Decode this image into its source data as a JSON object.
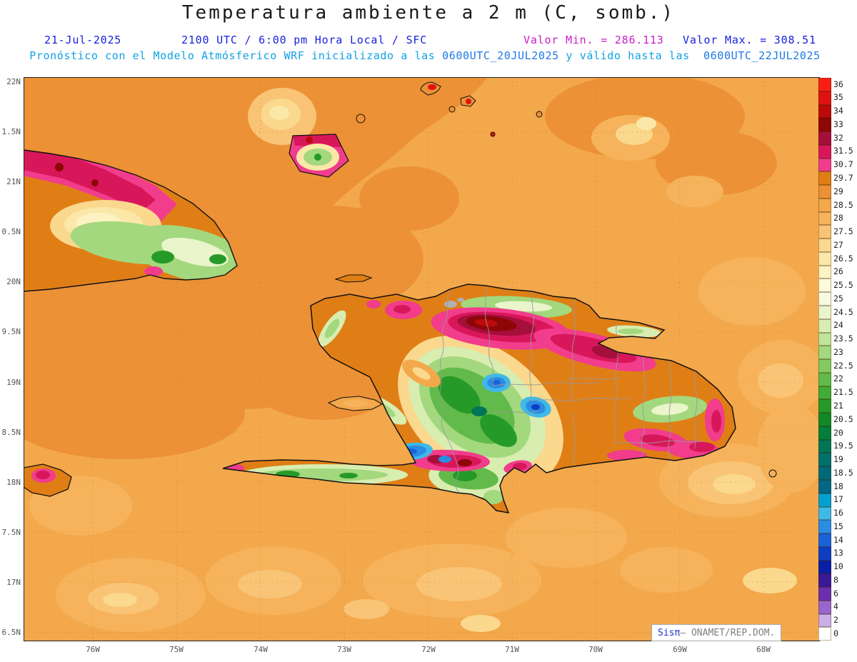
{
  "header": {
    "title": "Temperatura ambiente a 2 m (C, somb.)",
    "date": "21-Jul-2025",
    "time_line": "2100 UTC / 6:00 pm Hora Local / SFC",
    "valor_min": "Valor Min. = 286.113",
    "valor_max": "Valor Max. = 308.51",
    "forecast_prefix": "Pronóstico con el Modelo Atmósferico WRF inicializado a las ",
    "forecast_init": "0600UTC_20JUL2025",
    "forecast_mid": " y válido hasta las  ",
    "forecast_valid": "0600UTC_22JUL2025"
  },
  "map": {
    "lat_labels": [
      "22N",
      "1.5N",
      "21N",
      "0.5N",
      "20N",
      "9.5N",
      "19N",
      "8.5N",
      "18N",
      "7.5N",
      "17N",
      "6.5N"
    ],
    "lon_labels": [
      "76W",
      "75W",
      "74W",
      "73W",
      "72W",
      "71W",
      "70W",
      "69W",
      "68W"
    ],
    "colors": {
      "sea_28_5": "#F3A84C",
      "sea_29": "#EC9136",
      "land_29_7": "#E07E16",
      "hot_magenta_30_7": "#F23C8C",
      "hot_crimson_31_5": "#D8175A",
      "hot_dark_32": "#A50F3C",
      "hot_maroon_33": "#8E0606",
      "cool_green_22": "#62BA4A",
      "lake_blue_15": "#2B8CE4"
    }
  },
  "legend": {
    "entries": [
      {
        "value": "36",
        "color": "#F81E14"
      },
      {
        "value": "35",
        "color": "#E01210"
      },
      {
        "value": "34",
        "color": "#BC0A0A"
      },
      {
        "value": "33",
        "color": "#8E0606"
      },
      {
        "value": "32",
        "color": "#A50F3C"
      },
      {
        "value": "31.5",
        "color": "#D8175A"
      },
      {
        "value": "30.7",
        "color": "#F23C8C"
      },
      {
        "value": "29.7",
        "color": "#E07E16"
      },
      {
        "value": "29",
        "color": "#EC9136"
      },
      {
        "value": "28.5",
        "color": "#F3A84C"
      },
      {
        "value": "28",
        "color": "#F6B35B"
      },
      {
        "value": "27.5",
        "color": "#F9C476"
      },
      {
        "value": "27",
        "color": "#FAD88E"
      },
      {
        "value": "26.5",
        "color": "#FBE8A8"
      },
      {
        "value": "26",
        "color": "#FDF2C2"
      },
      {
        "value": "25.5",
        "color": "#FEFAD9"
      },
      {
        "value": "25",
        "color": "#F7FADF"
      },
      {
        "value": "24.5",
        "color": "#EAF5CB"
      },
      {
        "value": "24",
        "color": "#D8EDB0"
      },
      {
        "value": "23.5",
        "color": "#C0E49A"
      },
      {
        "value": "23",
        "color": "#A3D87E"
      },
      {
        "value": "22.5",
        "color": "#83C962"
      },
      {
        "value": "22",
        "color": "#62BA4A"
      },
      {
        "value": "21.5",
        "color": "#42AA36"
      },
      {
        "value": "21",
        "color": "#269A28"
      },
      {
        "value": "20.5",
        "color": "#108A28"
      },
      {
        "value": "20",
        "color": "#047E3C"
      },
      {
        "value": "19.5",
        "color": "#007656"
      },
      {
        "value": "19",
        "color": "#00706A"
      },
      {
        "value": "18.5",
        "color": "#006A78"
      },
      {
        "value": "18",
        "color": "#026886"
      },
      {
        "value": "17",
        "color": "#05A0D0"
      },
      {
        "value": "16",
        "color": "#3FB9E8"
      },
      {
        "value": "15",
        "color": "#2B8CE4"
      },
      {
        "value": "14",
        "color": "#1A62D8"
      },
      {
        "value": "13",
        "color": "#0E3EC4"
      },
      {
        "value": "10",
        "color": "#0820A8"
      },
      {
        "value": "8",
        "color": "#3A1898"
      },
      {
        "value": "6",
        "color": "#6C2FB0"
      },
      {
        "value": "4",
        "color": "#9A66CB"
      },
      {
        "value": "2",
        "color": "#CBAEE5"
      },
      {
        "value": "0",
        "color": "#FFFFFF"
      }
    ]
  },
  "watermark": {
    "brand": "Sisπ",
    "text": "– ONAMET/REP.DOM."
  }
}
